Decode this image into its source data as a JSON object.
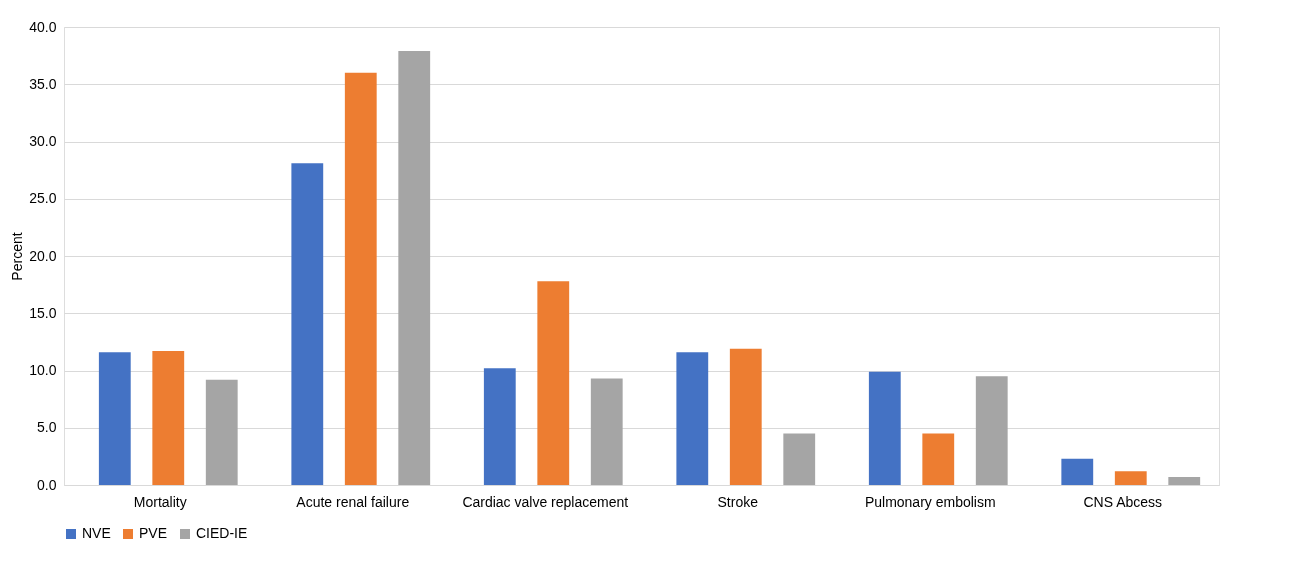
{
  "chart_data": {
    "type": "bar",
    "ylabel": "Percent",
    "categories": [
      "Mortality",
      "Acute renal failure",
      "Cardiac valve replacement",
      "Stroke",
      "Pulmonary embolism",
      "CNS Abcess"
    ],
    "series": [
      {
        "name": "NVE",
        "color": "#4472c4",
        "values": [
          11.6,
          28.1,
          10.2,
          11.6,
          9.9,
          2.3
        ]
      },
      {
        "name": "PVE",
        "color": "#ed7d31",
        "values": [
          11.7,
          36.0,
          17.8,
          11.9,
          4.5,
          1.2
        ]
      },
      {
        "name": "CIED-IE",
        "color": "#a5a5a5",
        "values": [
          9.2,
          37.9,
          9.3,
          4.5,
          9.5,
          0.7
        ]
      }
    ],
    "ylim": [
      0,
      40
    ],
    "yticks": [
      {
        "value": 0,
        "label": "0.0"
      },
      {
        "value": 5,
        "label": "5.0"
      },
      {
        "value": 10,
        "label": "10.0"
      },
      {
        "value": 15,
        "label": "15.0"
      },
      {
        "value": 20,
        "label": "20.0"
      },
      {
        "value": 25,
        "label": "25.0"
      },
      {
        "value": 30,
        "label": "30.0"
      },
      {
        "value": 35,
        "label": "35.0"
      },
      {
        "value": 40,
        "label": "40.0"
      }
    ],
    "grid": "y",
    "legend": "bottom"
  }
}
